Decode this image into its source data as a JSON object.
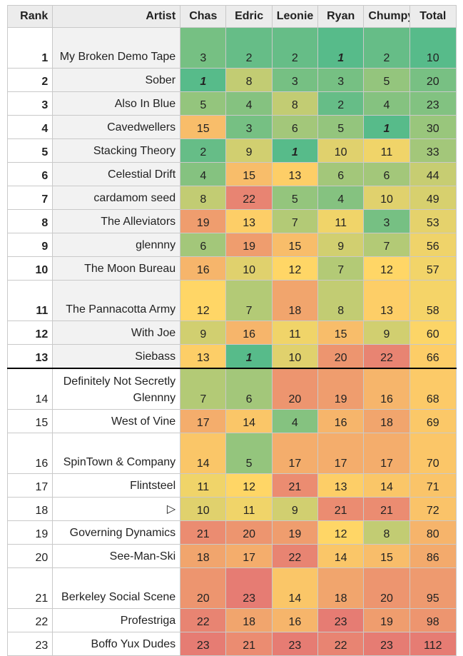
{
  "headers": [
    "Rank",
    "Artist",
    "Chas",
    "Edric",
    "Leonie",
    "Ryan",
    "Chumpy",
    "Total"
  ],
  "rows": [
    {
      "rank": "1",
      "artist": "My Broken Demo Tape",
      "tall": true,
      "scores": [
        3,
        2,
        2,
        1,
        2
      ],
      "total": 10
    },
    {
      "rank": "2",
      "artist": "Sober",
      "tall": false,
      "scores": [
        1,
        8,
        3,
        3,
        5
      ],
      "total": 20
    },
    {
      "rank": "3",
      "artist": "Also In Blue",
      "tall": false,
      "scores": [
        5,
        4,
        8,
        2,
        4
      ],
      "total": 23
    },
    {
      "rank": "4",
      "artist": "Cavedwellers",
      "tall": false,
      "scores": [
        15,
        3,
        6,
        5,
        1
      ],
      "total": 30
    },
    {
      "rank": "5",
      "artist": "Stacking Theory",
      "tall": false,
      "scores": [
        2,
        9,
        1,
        10,
        11
      ],
      "total": 33
    },
    {
      "rank": "6",
      "artist": "Celestial Drift",
      "tall": false,
      "scores": [
        4,
        15,
        13,
        6,
        6
      ],
      "total": 44
    },
    {
      "rank": "7",
      "artist": "cardamom seed",
      "tall": false,
      "scores": [
        8,
        22,
        5,
        4,
        10
      ],
      "total": 49
    },
    {
      "rank": "8",
      "artist": "The Alleviators",
      "tall": false,
      "scores": [
        19,
        13,
        7,
        11,
        3
      ],
      "total": 53
    },
    {
      "rank": "9",
      "artist": "glennny",
      "tall": false,
      "scores": [
        6,
        19,
        15,
        9,
        7
      ],
      "total": 56
    },
    {
      "rank": "10",
      "artist": "The Moon Bureau",
      "tall": false,
      "scores": [
        16,
        10,
        12,
        7,
        12
      ],
      "total": 57
    },
    {
      "rank": "11",
      "artist": "The Pannacotta Army",
      "tall": true,
      "scores": [
        12,
        7,
        18,
        8,
        13
      ],
      "total": 58
    },
    {
      "rank": "12",
      "artist": "With Joe",
      "tall": false,
      "scores": [
        9,
        16,
        11,
        15,
        9
      ],
      "total": 60
    },
    {
      "rank": "13",
      "artist": "Siebass",
      "tall": false,
      "scores": [
        13,
        1,
        10,
        20,
        22
      ],
      "total": 66
    },
    {
      "rank": "14",
      "artist": "Definitely Not Secretly Glennny",
      "tall": true,
      "scores": [
        7,
        6,
        20,
        19,
        16
      ],
      "total": 68
    },
    {
      "rank": "15",
      "artist": "West of Vine",
      "tall": false,
      "scores": [
        17,
        14,
        4,
        16,
        18
      ],
      "total": 69
    },
    {
      "rank": "16",
      "artist": "SpinTown & Company",
      "tall": true,
      "scores": [
        14,
        5,
        17,
        17,
        17
      ],
      "total": 70
    },
    {
      "rank": "17",
      "artist": "Flintsteel",
      "tall": false,
      "scores": [
        11,
        12,
        21,
        13,
        14
      ],
      "total": 71
    },
    {
      "rank": "18",
      "artist": "▷",
      "tall": false,
      "scores": [
        10,
        11,
        9,
        21,
        21
      ],
      "total": 72
    },
    {
      "rank": "19",
      "artist": "Governing Dynamics",
      "tall": false,
      "scores": [
        21,
        20,
        19,
        12,
        8
      ],
      "total": 80
    },
    {
      "rank": "20",
      "artist": "See-Man-Ski",
      "tall": false,
      "scores": [
        18,
        17,
        22,
        14,
        15
      ],
      "total": 86
    },
    {
      "rank": "21",
      "artist": "Berkeley Social Scene",
      "tall": true,
      "scores": [
        20,
        23,
        14,
        18,
        20
      ],
      "total": 95
    },
    {
      "rank": "22",
      "artist": "Profestriga",
      "tall": false,
      "scores": [
        22,
        18,
        16,
        23,
        19
      ],
      "total": 98
    },
    {
      "rank": "23",
      "artist": "Boffo Yux Dudes",
      "tall": false,
      "scores": [
        23,
        21,
        23,
        22,
        23
      ],
      "total": 112
    }
  ],
  "bold_rank_through": 13,
  "cutoff_after_rank": 13,
  "color_scale": {
    "low": "#57bb8a",
    "mid": "#ffd666",
    "high": "#e67c73"
  }
}
